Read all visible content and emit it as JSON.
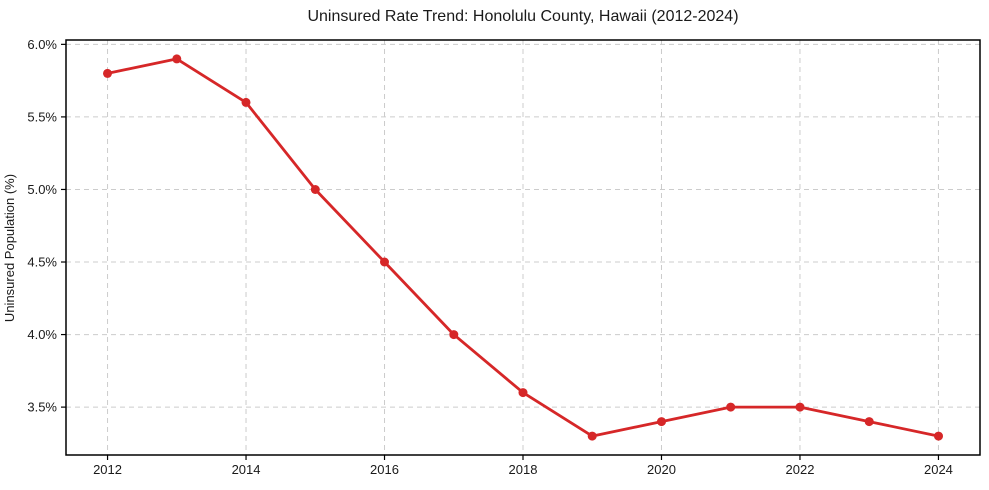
{
  "chart_data": {
    "type": "line",
    "title": "Uninsured Rate Trend: Honolulu County, Hawaii (2012-2024)",
    "xlabel": "",
    "ylabel": "Uninsured Population (%)",
    "x": [
      2012,
      2013,
      2014,
      2015,
      2016,
      2017,
      2018,
      2019,
      2020,
      2021,
      2022,
      2023,
      2024
    ],
    "values": [
      5.8,
      5.9,
      5.6,
      5.0,
      4.5,
      4.0,
      3.6,
      3.3,
      3.4,
      3.5,
      3.5,
      3.4,
      3.3
    ],
    "xlim": [
      2011.4,
      2024.6
    ],
    "ylim": [
      3.17,
      6.03
    ],
    "x_ticks": [
      2012,
      2014,
      2016,
      2018,
      2020,
      2022,
      2024
    ],
    "x_tick_labels": [
      "2012",
      "2014",
      "2016",
      "2018",
      "2020",
      "2022",
      "2024"
    ],
    "y_ticks": [
      3.5,
      4.0,
      4.5,
      5.0,
      5.5,
      6.0
    ],
    "y_tick_labels": [
      "3.5%",
      "4.0%",
      "4.5%",
      "5.0%",
      "5.5%",
      "6.0%"
    ],
    "grid": true,
    "legend": false,
    "line_color": "#d62728",
    "marker_color": "#d62728",
    "grid_color": "#cccccc",
    "axis_color": "#000000",
    "text_color": "#1a1a1a",
    "background_color": "#ffffff"
  }
}
